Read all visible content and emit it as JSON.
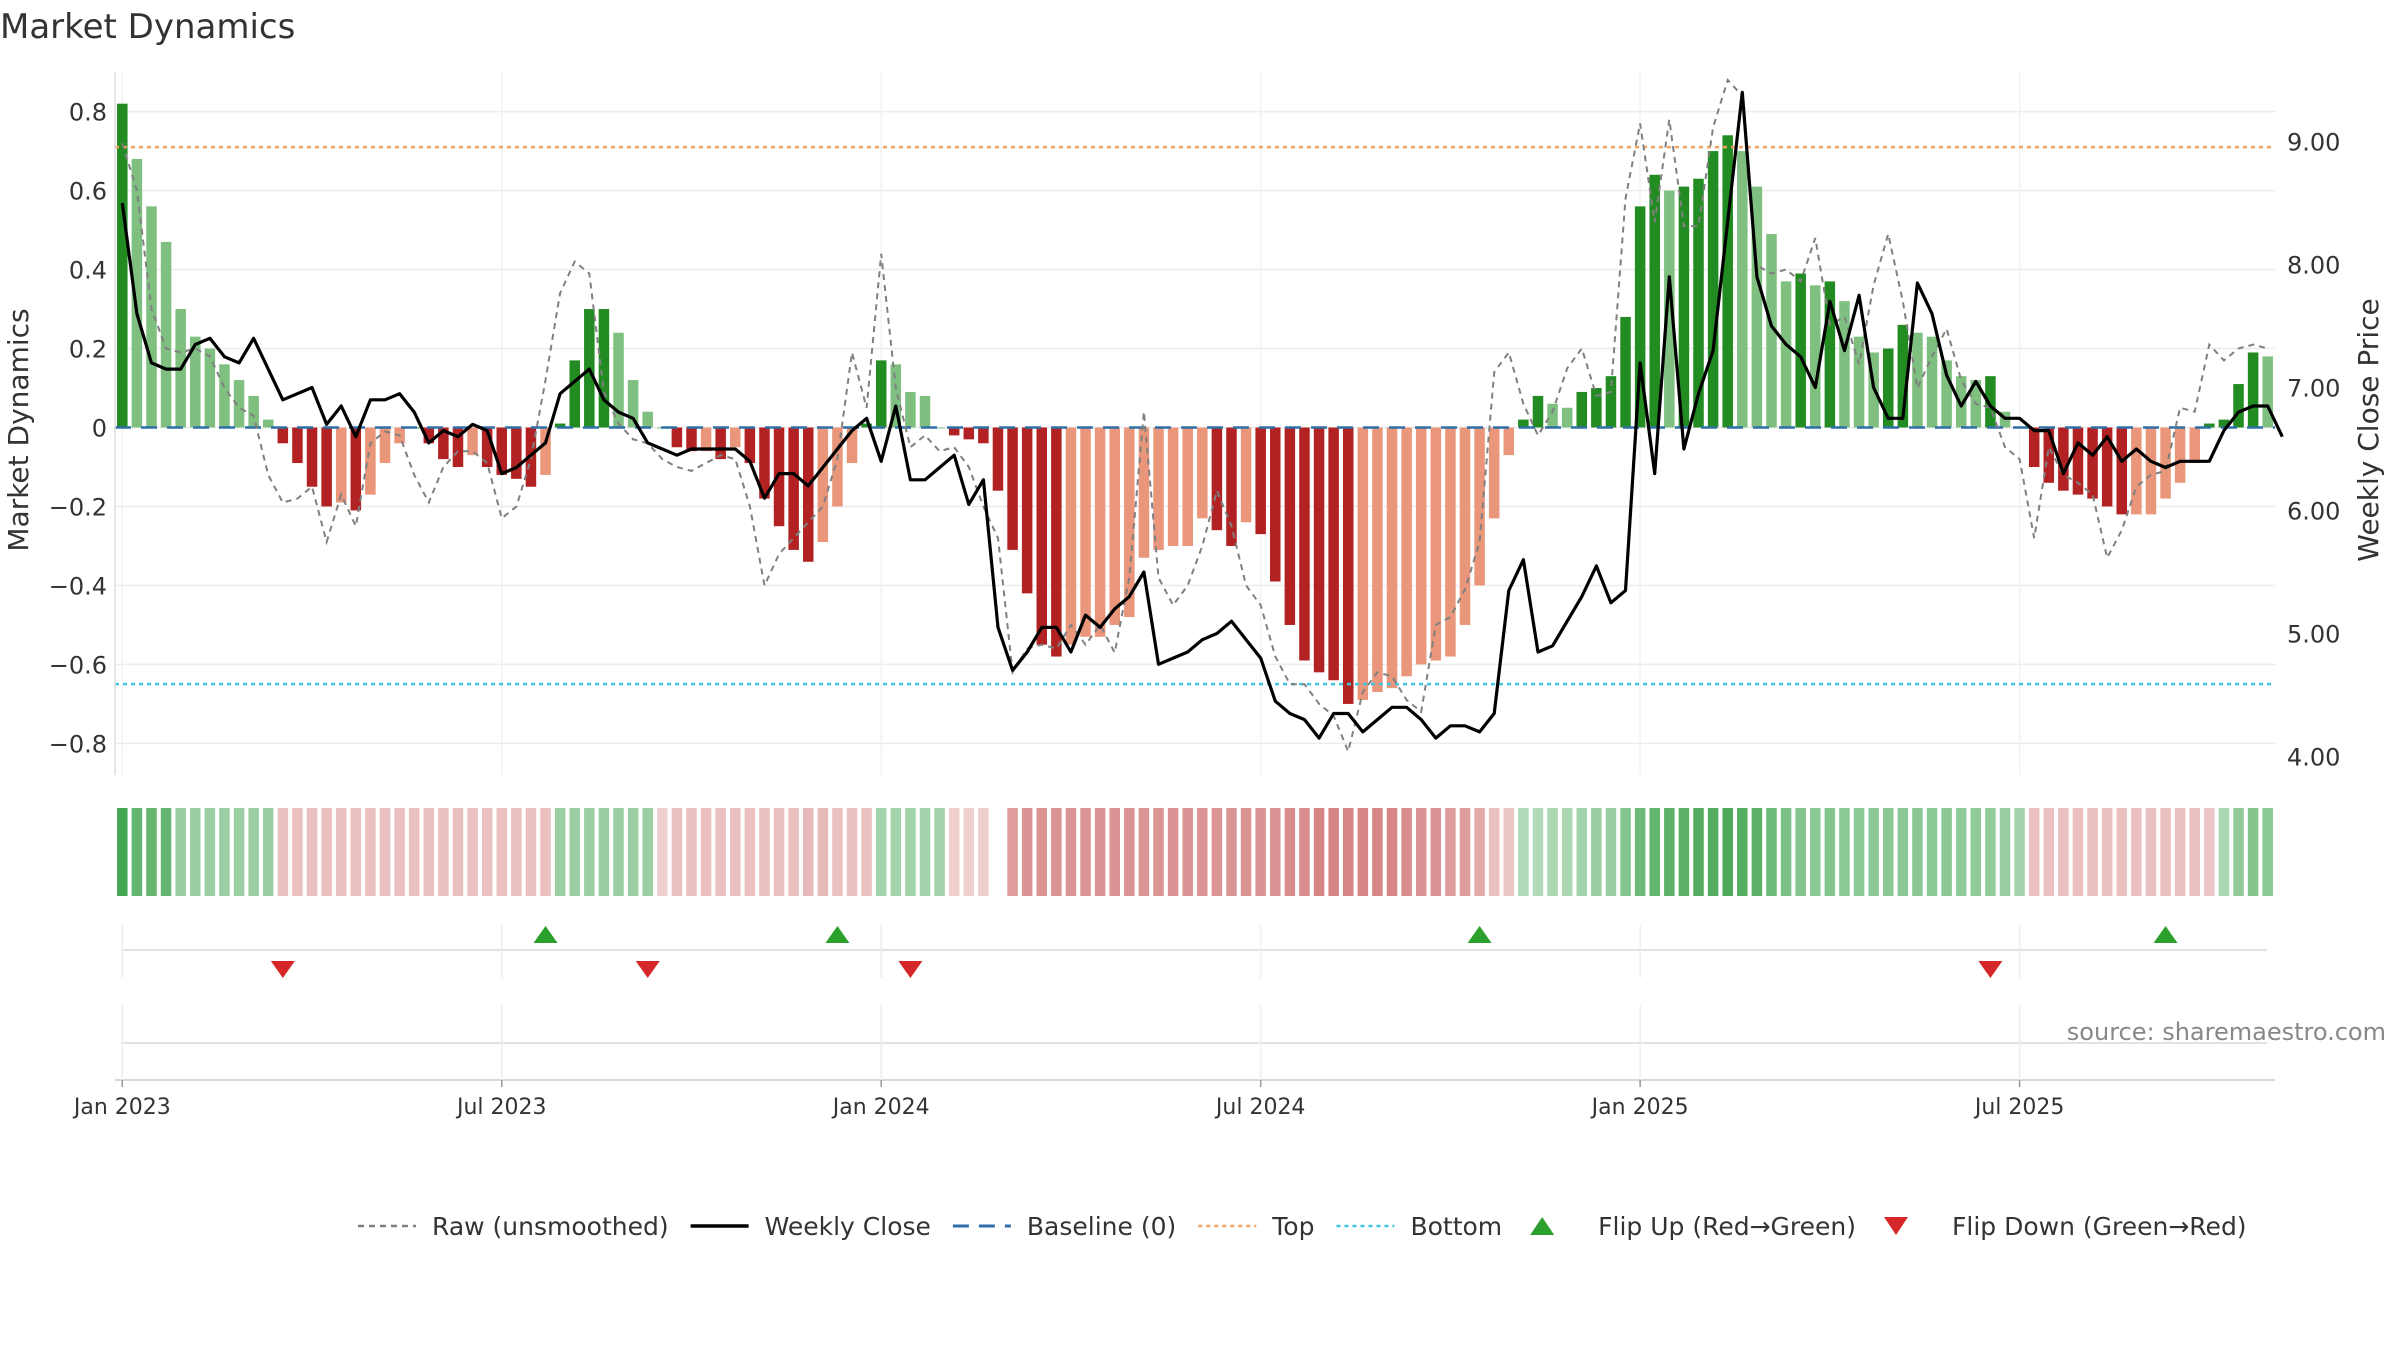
{
  "chart_data": {
    "type": "bar",
    "title": "Market Dynamics",
    "ylabel_left": "Market Dynamics",
    "ylabel_right": "Weekly Close Price",
    "ylim_left": [
      -0.88,
      0.88
    ],
    "ylim_right": [
      3.85,
      9.5
    ],
    "yticks_left": [
      0.8,
      0.6,
      0.4,
      0.2,
      0,
      -0.2,
      -0.4,
      -0.6,
      -0.8
    ],
    "ytick_labels_left": [
      "0.8",
      "0.6",
      "0.4",
      "0.2",
      "0",
      "−0.2",
      "−0.4",
      "−0.6",
      "−0.8"
    ],
    "yticks_right": [
      9,
      8,
      7,
      6,
      5,
      4
    ],
    "ytick_labels_right": [
      "9.00",
      "8.00",
      "7.00",
      "6.00",
      "5.00",
      "4.00"
    ],
    "x_ticks": [
      "Jan 2023",
      "Jul 2023",
      "Jan 2024",
      "Jul 2024",
      "Jan 2025",
      "Jul 2025"
    ],
    "x_tick_weeks": [
      0.5,
      26.5,
      52.5,
      78.5,
      104.5,
      130.5
    ],
    "top_level": 0.71,
    "bottom_level": -0.65,
    "baseline": 0,
    "grid": true,
    "colors": {
      "green_strong": "#228b22",
      "green_light": "#7fbf7f",
      "red_strong": "#b22222",
      "red_light": "#e9967a",
      "top_line": "#f4a460",
      "bottom_line": "#40c4e0",
      "baseline": "#2f6fa8",
      "close_line": "#000000",
      "raw_line": "#808080",
      "flip_up": "#2ca02c",
      "flip_down": "#d62728"
    },
    "weekly_start": "2022-12-30",
    "bars": [
      0.82,
      0.68,
      0.56,
      0.47,
      0.3,
      0.23,
      0.2,
      0.16,
      0.12,
      0.08,
      0.02,
      -0.04,
      -0.09,
      -0.15,
      -0.2,
      -0.19,
      -0.21,
      -0.17,
      -0.09,
      -0.04,
      0,
      -0.04,
      -0.08,
      -0.1,
      -0.07,
      -0.1,
      -0.12,
      -0.13,
      -0.15,
      -0.12,
      0.01,
      0.17,
      0.3,
      0.3,
      0.24,
      0.12,
      0.04,
      0,
      -0.05,
      -0.06,
      -0.06,
      -0.08,
      -0.05,
      -0.09,
      -0.18,
      -0.25,
      -0.31,
      -0.34,
      -0.29,
      -0.2,
      -0.09,
      0.01,
      0.17,
      0.16,
      0.09,
      0.08,
      0,
      -0.02,
      -0.03,
      -0.04,
      -0.16,
      -0.31,
      -0.42,
      -0.55,
      -0.58,
      -0.55,
      -0.53,
      -0.53,
      -0.5,
      -0.48,
      -0.33,
      -0.31,
      -0.3,
      -0.3,
      -0.23,
      -0.26,
      -0.3,
      -0.24,
      -0.27,
      -0.39,
      -0.5,
      -0.59,
      -0.62,
      -0.64,
      -0.7,
      -0.69,
      -0.67,
      -0.66,
      -0.63,
      -0.6,
      -0.59,
      -0.58,
      -0.5,
      -0.4,
      -0.23,
      -0.07,
      0.02,
      0.08,
      0.06,
      0.05,
      0.09,
      0.1,
      0.13,
      0.28,
      0.56,
      0.64,
      0.6,
      0.61,
      0.63,
      0.7,
      0.74,
      0.7,
      0.61,
      0.49,
      0.37,
      0.39,
      0.36,
      0.37,
      0.32,
      0.23,
      0.19,
      0.2,
      0.26,
      0.24,
      0.23,
      0.17,
      0.13,
      0.12,
      0.13,
      0.04,
      0,
      -0.1,
      -0.14,
      -0.16,
      -0.17,
      -0.18,
      -0.2,
      -0.22,
      -0.22,
      -0.22,
      -0.18,
      -0.14,
      -0.09,
      0.01,
      0.02,
      0.11,
      0.19,
      0.18
    ],
    "raw": [
      0.72,
      0.6,
      0.3,
      0.2,
      0.19,
      0.2,
      0.18,
      0.1,
      0.05,
      0.03,
      -0.12,
      -0.19,
      -0.18,
      -0.15,
      -0.29,
      -0.17,
      -0.25,
      -0.04,
      -0.01,
      -0.02,
      -0.12,
      -0.19,
      -0.1,
      -0.06,
      -0.06,
      -0.09,
      -0.23,
      -0.2,
      -0.08,
      0.12,
      0.34,
      0.42,
      0.39,
      0.09,
      0.01,
      -0.03,
      -0.04,
      -0.08,
      -0.1,
      -0.11,
      -0.09,
      -0.07,
      -0.08,
      -0.2,
      -0.4,
      -0.32,
      -0.28,
      -0.24,
      -0.2,
      -0.08,
      0.19,
      0.05,
      0.44,
      0.1,
      -0.05,
      -0.02,
      -0.06,
      -0.05,
      -0.1,
      -0.2,
      -0.28,
      -0.62,
      -0.56,
      -0.55,
      -0.56,
      -0.5,
      -0.55,
      -0.5,
      -0.57,
      -0.38,
      0.04,
      -0.38,
      -0.45,
      -0.4,
      -0.3,
      -0.16,
      -0.25,
      -0.4,
      -0.45,
      -0.58,
      -0.65,
      -0.65,
      -0.7,
      -0.73,
      -0.82,
      -0.67,
      -0.62,
      -0.63,
      -0.69,
      -0.72,
      -0.5,
      -0.48,
      -0.41,
      -0.29,
      0.14,
      0.19,
      0.06,
      -0.02,
      0.04,
      0.15,
      0.2,
      0.08,
      0.09,
      0.58,
      0.77,
      0.52,
      0.78,
      0.51,
      0.51,
      0.76,
      0.88,
      0.84,
      0.41,
      0.39,
      0.4,
      0.37,
      0.48,
      0.26,
      0.28,
      0.16,
      0.36,
      0.49,
      0.32,
      0.1,
      0.18,
      0.25,
      0.12,
      0.06,
      0.05,
      -0.05,
      -0.08,
      -0.28,
      -0.05,
      -0.12,
      -0.14,
      -0.17,
      -0.33,
      -0.26,
      -0.15,
      -0.12,
      -0.11,
      0.05,
      0.04,
      0.21,
      0.17,
      0.2,
      0.21,
      0.2
    ],
    "close": [
      8.5,
      7.6,
      7.2,
      7.15,
      7.15,
      7.35,
      7.4,
      7.25,
      7.2,
      7.4,
      7.15,
      6.9,
      6.95,
      7.0,
      6.7,
      6.85,
      6.6,
      6.9,
      6.9,
      6.95,
      6.8,
      6.55,
      6.65,
      6.6,
      6.7,
      6.65,
      6.3,
      6.35,
      6.45,
      6.55,
      6.95,
      7.05,
      7.15,
      6.9,
      6.8,
      6.75,
      6.55,
      6.5,
      6.45,
      6.5,
      6.5,
      6.5,
      6.5,
      6.4,
      6.1,
      6.3,
      6.3,
      6.2,
      6.35,
      6.5,
      6.65,
      6.75,
      6.4,
      6.85,
      6.25,
      6.25,
      6.35,
      6.45,
      6.05,
      6.25,
      5.05,
      4.7,
      4.85,
      5.05,
      5.05,
      4.85,
      5.15,
      5.05,
      5.2,
      5.3,
      5.5,
      4.75,
      4.8,
      4.85,
      4.95,
      5.0,
      5.1,
      4.95,
      4.8,
      4.45,
      4.35,
      4.3,
      4.15,
      4.35,
      4.35,
      4.2,
      4.3,
      4.4,
      4.4,
      4.3,
      4.15,
      4.25,
      4.25,
      4.2,
      4.35,
      5.35,
      5.6,
      4.85,
      4.9,
      5.1,
      5.3,
      5.55,
      5.25,
      5.35,
      7.2,
      6.3,
      7.9,
      6.5,
      6.95,
      7.3,
      8.35,
      9.4,
      7.9,
      7.5,
      7.35,
      7.25,
      7.0,
      7.7,
      7.3,
      7.75,
      7.0,
      6.75,
      6.75,
      7.85,
      7.6,
      7.1,
      6.85,
      7.05,
      6.85,
      6.75,
      6.75,
      6.65,
      6.65,
      6.3,
      6.55,
      6.45,
      6.6,
      6.4,
      6.5,
      6.4,
      6.35,
      6.4,
      6.4,
      6.4,
      6.65,
      6.8,
      6.85,
      6.85,
      6.6
    ],
    "regime_strip": [
      0.95,
      0.75,
      0.75,
      0.75,
      0.4,
      0.4,
      0.4,
      0.4,
      0.4,
      0.4,
      0.4,
      -0.3,
      -0.3,
      -0.3,
      -0.3,
      -0.3,
      -0.3,
      -0.3,
      -0.3,
      -0.3,
      -0.3,
      -0.3,
      -0.3,
      -0.3,
      -0.3,
      -0.3,
      -0.3,
      -0.3,
      -0.3,
      -0.3,
      0.4,
      0.4,
      0.4,
      0.4,
      0.4,
      0.4,
      0.4,
      -0.2,
      -0.3,
      -0.3,
      -0.3,
      -0.3,
      -0.3,
      -0.3,
      -0.3,
      -0.3,
      -0.3,
      -0.35,
      -0.35,
      -0.3,
      -0.3,
      -0.3,
      0.35,
      0.35,
      0.35,
      0.35,
      0.35,
      -0.2,
      -0.2,
      -0.2,
      null,
      -0.55,
      -0.6,
      -0.6,
      -0.6,
      -0.6,
      -0.6,
      -0.6,
      -0.6,
      -0.6,
      -0.6,
      -0.6,
      -0.6,
      -0.6,
      -0.6,
      -0.6,
      -0.6,
      -0.6,
      -0.6,
      -0.6,
      -0.65,
      -0.65,
      -0.7,
      -0.7,
      -0.7,
      -0.7,
      -0.7,
      -0.7,
      -0.65,
      -0.6,
      -0.6,
      -0.55,
      -0.55,
      -0.45,
      -0.3,
      -0.25,
      0.25,
      0.25,
      0.3,
      0.3,
      0.35,
      0.4,
      0.4,
      0.55,
      0.7,
      0.75,
      0.8,
      0.8,
      0.85,
      0.85,
      0.9,
      0.85,
      0.8,
      0.7,
      0.6,
      0.55,
      0.5,
      0.55,
      0.5,
      0.5,
      0.5,
      0.5,
      0.5,
      0.5,
      0.5,
      0.5,
      0.45,
      0.45,
      0.45,
      0.4,
      0.35,
      -0.3,
      -0.3,
      -0.3,
      -0.3,
      -0.3,
      -0.3,
      -0.3,
      -0.3,
      -0.3,
      -0.3,
      -0.3,
      -0.3,
      -0.25,
      0.3,
      0.45,
      0.55,
      0.5
    ],
    "flip_up_weeks": [
      29,
      49,
      93,
      140
    ],
    "flip_down_weeks": [
      11,
      36,
      54,
      128
    ],
    "watermark": "source: sharemaestro.com",
    "legend_placement": "bottom-center",
    "legend": [
      {
        "label": "Raw (unsmoothed)",
        "kind": "dashed-line",
        "color": "#808080"
      },
      {
        "label": "Weekly Close",
        "kind": "line",
        "color": "#000000"
      },
      {
        "label": "Baseline (0)",
        "kind": "long-dash",
        "color": "#2f6fa8"
      },
      {
        "label": "Top",
        "kind": "dotted-line",
        "color": "#f4a460"
      },
      {
        "label": "Bottom",
        "kind": "dotted-line",
        "color": "#40c4e0"
      },
      {
        "label": "Flip Up (Red→Green)",
        "kind": "triangle-up",
        "color": "#2ca02c"
      },
      {
        "label": "Flip Down (Green→Red)",
        "kind": "triangle-down",
        "color": "#d62728"
      }
    ]
  }
}
